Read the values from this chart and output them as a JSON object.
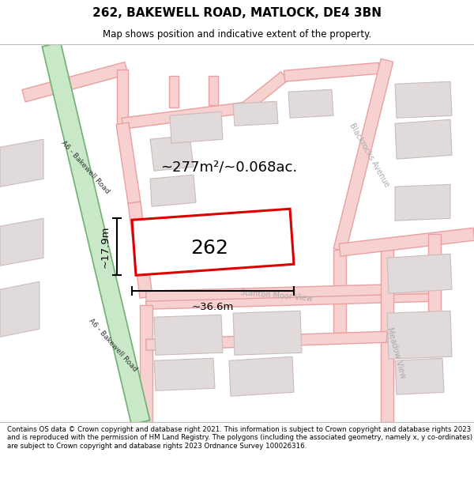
{
  "title": "262, BAKEWELL ROAD, MATLOCK, DE4 3BN",
  "subtitle": "Map shows position and indicative extent of the property.",
  "footer": "Contains OS data © Crown copyright and database right 2021. This information is subject to Crown copyright and database rights 2023 and is reproduced with the permission of HM Land Registry. The polygons (including the associated geometry, namely x, y co-ordinates) are subject to Crown copyright and database rights 2023 Ordnance Survey 100026316.",
  "map_bg": "#ffffff",
  "road_color": "#f7d0d0",
  "road_outline": "#e8a0a0",
  "green_road_fill": "#c8e8c8",
  "green_road_outline": "#70b070",
  "building_color": "#e0dada",
  "building_outline": "#ccbbbb",
  "highlight_color": "#dd0000",
  "area_text": "~277m²/~0.068ac.",
  "label_262": "262",
  "dim_width": "~36.6m",
  "dim_height": "~17.9m",
  "street_label_a6_upper": "A6 - Bakewell Road",
  "street_label_a6_lower": "A6 - Bakewell Road",
  "road_label_blackrocks": "Blackrocks Avenue",
  "road_label_stanton": "Stanton Moor View",
  "road_label_meadow": "Meadow View",
  "title_fontsize": 11,
  "subtitle_fontsize": 8.5,
  "footer_fontsize": 6.2
}
